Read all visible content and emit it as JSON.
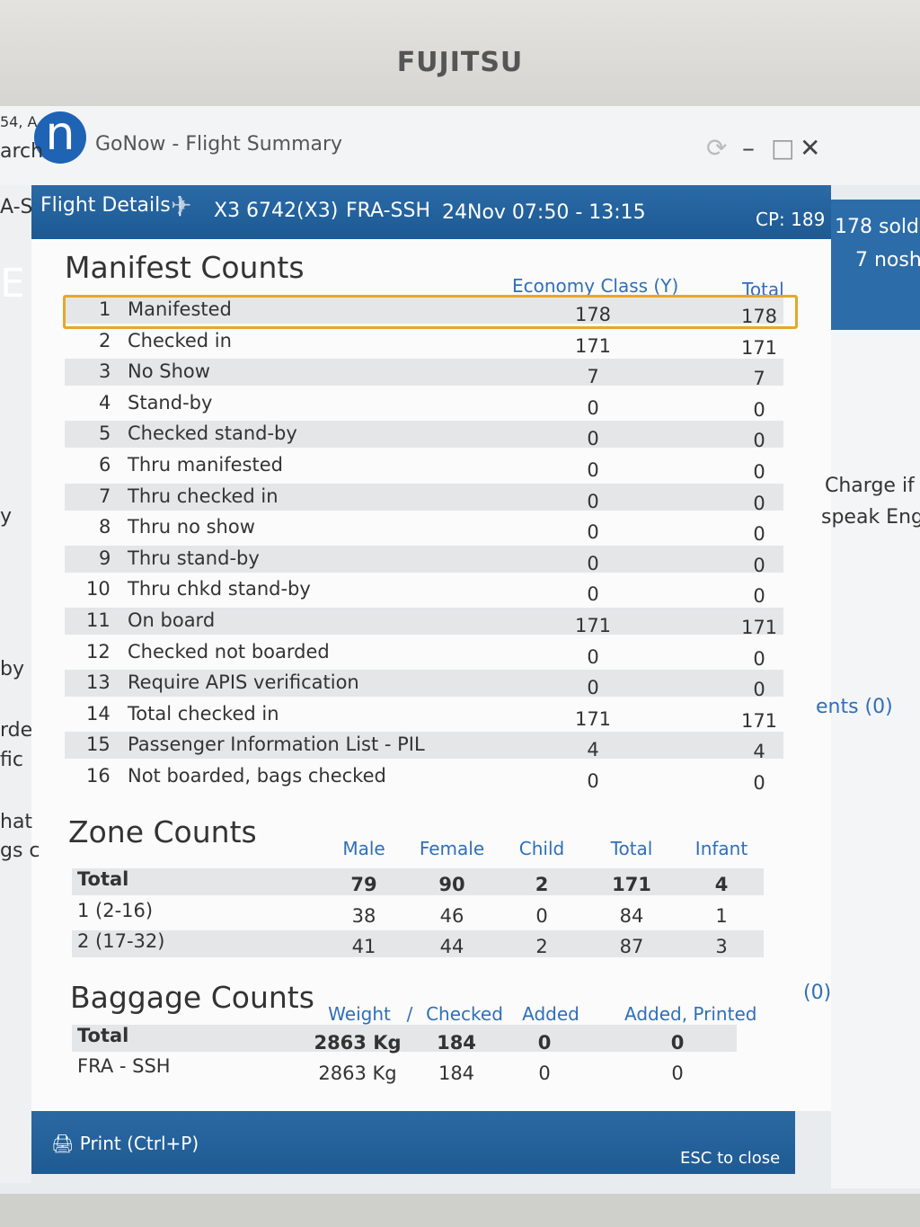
{
  "monitor": {
    "brand": "FUJITSU"
  },
  "window": {
    "logo": "n",
    "title": "GoNow - Flight Summary"
  },
  "background": {
    "left_fragments": [
      "54, A",
      "arch",
      "A-S",
      "E",
      "y",
      "by",
      "rde",
      "fic",
      "hat",
      "gs c"
    ],
    "right_fragments": [
      "178 sold",
      "7 nosh",
      "Charge if",
      "speak Engl",
      "ents (0)",
      "(0)"
    ]
  },
  "header": {
    "label": "Flight Details |",
    "flight": "X3 6742(X3)",
    "route": "FRA-SSH",
    "date": "24Nov 07:50 - 13:15",
    "cp": "CP: 189"
  },
  "manifest": {
    "title": "Manifest Counts",
    "columns": [
      "Economy Class (Y)",
      "Total"
    ],
    "rows": [
      [
        "1",
        "Manifested",
        "178",
        "178"
      ],
      [
        "2",
        "Checked in",
        "171",
        "171"
      ],
      [
        "3",
        "No Show",
        "7",
        "7"
      ],
      [
        "4",
        "Stand-by",
        "0",
        "0"
      ],
      [
        "5",
        "Checked stand-by",
        "0",
        "0"
      ],
      [
        "6",
        "Thru manifested",
        "0",
        "0"
      ],
      [
        "7",
        "Thru checked in",
        "0",
        "0"
      ],
      [
        "8",
        "Thru no show",
        "0",
        "0"
      ],
      [
        "9",
        "Thru stand-by",
        "0",
        "0"
      ],
      [
        "10",
        "Thru chkd stand-by",
        "0",
        "0"
      ],
      [
        "11",
        "On board",
        "171",
        "171"
      ],
      [
        "12",
        "Checked not boarded",
        "0",
        "0"
      ],
      [
        "13",
        "Require APIS verification",
        "0",
        "0"
      ],
      [
        "14",
        "Total checked in",
        "171",
        "171"
      ],
      [
        "15",
        "Passenger Information List - PIL",
        "4",
        "4"
      ],
      [
        "16",
        "Not boarded, bags checked",
        "0",
        "0"
      ]
    ]
  },
  "zone": {
    "title": "Zone Counts",
    "columns": [
      "Male",
      "Female",
      "Child",
      "Total",
      "Infant"
    ],
    "rows": [
      [
        "Total",
        "79",
        "90",
        "2",
        "171",
        "4"
      ],
      [
        "1 (2-16)",
        "38",
        "46",
        "0",
        "84",
        "1"
      ],
      [
        "2 (17-32)",
        "41",
        "44",
        "2",
        "87",
        "3"
      ]
    ]
  },
  "baggage": {
    "title": "Baggage Counts",
    "columns": [
      "Weight",
      "/",
      "Checked",
      "Added",
      "Added, Printed"
    ],
    "rows": [
      [
        "Total",
        "2863 Kg",
        "184",
        "0",
        "0"
      ],
      [
        "FRA - SSH",
        "2863 Kg",
        "184",
        "0",
        "0"
      ]
    ]
  },
  "footer": {
    "print": "Print (Ctrl+P)",
    "close": "ESC to close"
  }
}
